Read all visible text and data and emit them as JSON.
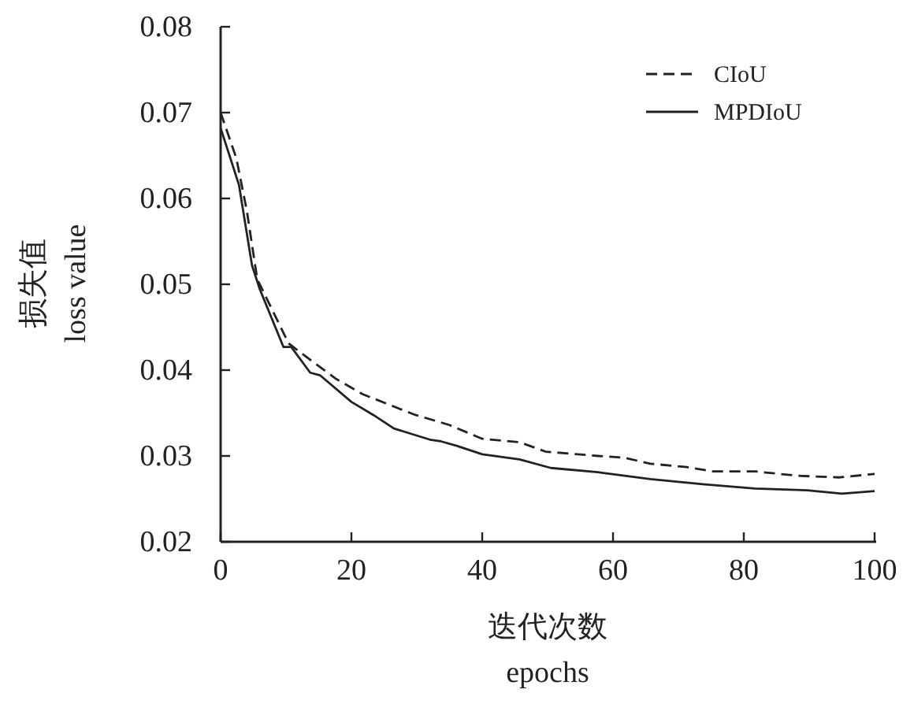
{
  "chart_data": {
    "type": "line",
    "xlabel": "迭代次数\nepochs",
    "ylabel": "损失值\nloss value",
    "xlim": [
      0,
      100
    ],
    "xticks": [
      0,
      20,
      40,
      60,
      80,
      100
    ],
    "ylim": [
      0.02,
      0.08
    ],
    "yticks": [
      0.02,
      0.03,
      0.04,
      0.05,
      0.06,
      0.07,
      0.08
    ],
    "grid": false,
    "legend": "top right",
    "marker": "none",
    "series": [
      {
        "name": "CIoU",
        "color": "#222222",
        "line_style": "dashed",
        "x": [
          0,
          2.4,
          4,
          5.6,
          10.4,
          13.7,
          17.6,
          21.7,
          25.7,
          29.7,
          33.7,
          35,
          40,
          45.7,
          49.7,
          57.7,
          61.7,
          65.7,
          71.3,
          75.3,
          81.7,
          88.1,
          94.5,
          100
        ],
        "values": [
          0.07,
          0.0647,
          0.0586,
          0.0506,
          0.0431,
          0.0412,
          0.039,
          0.0372,
          0.036,
          0.0348,
          0.0339,
          0.0336,
          0.032,
          0.0316,
          0.0305,
          0.03,
          0.0298,
          0.0291,
          0.0287,
          0.0282,
          0.0282,
          0.0277,
          0.0275,
          0.0279
        ]
      },
      {
        "name": "MPDIoU",
        "color": "#222222",
        "line_style": "solid",
        "x": [
          0,
          2.8,
          4.8,
          6,
          9.6,
          10.8,
          13.7,
          15.2,
          20,
          23.3,
          26.5,
          32,
          33.7,
          36,
          40,
          45.7,
          50.5,
          57.7,
          65.7,
          73.7,
          81.7,
          89.7,
          95,
          100
        ],
        "values": [
          0.0682,
          0.0616,
          0.0522,
          0.0494,
          0.0427,
          0.0427,
          0.0397,
          0.0394,
          0.0363,
          0.0348,
          0.0332,
          0.0319,
          0.0317,
          0.0312,
          0.0302,
          0.0296,
          0.0286,
          0.0281,
          0.0273,
          0.0267,
          0.0262,
          0.026,
          0.0256,
          0.0259
        ]
      }
    ]
  }
}
